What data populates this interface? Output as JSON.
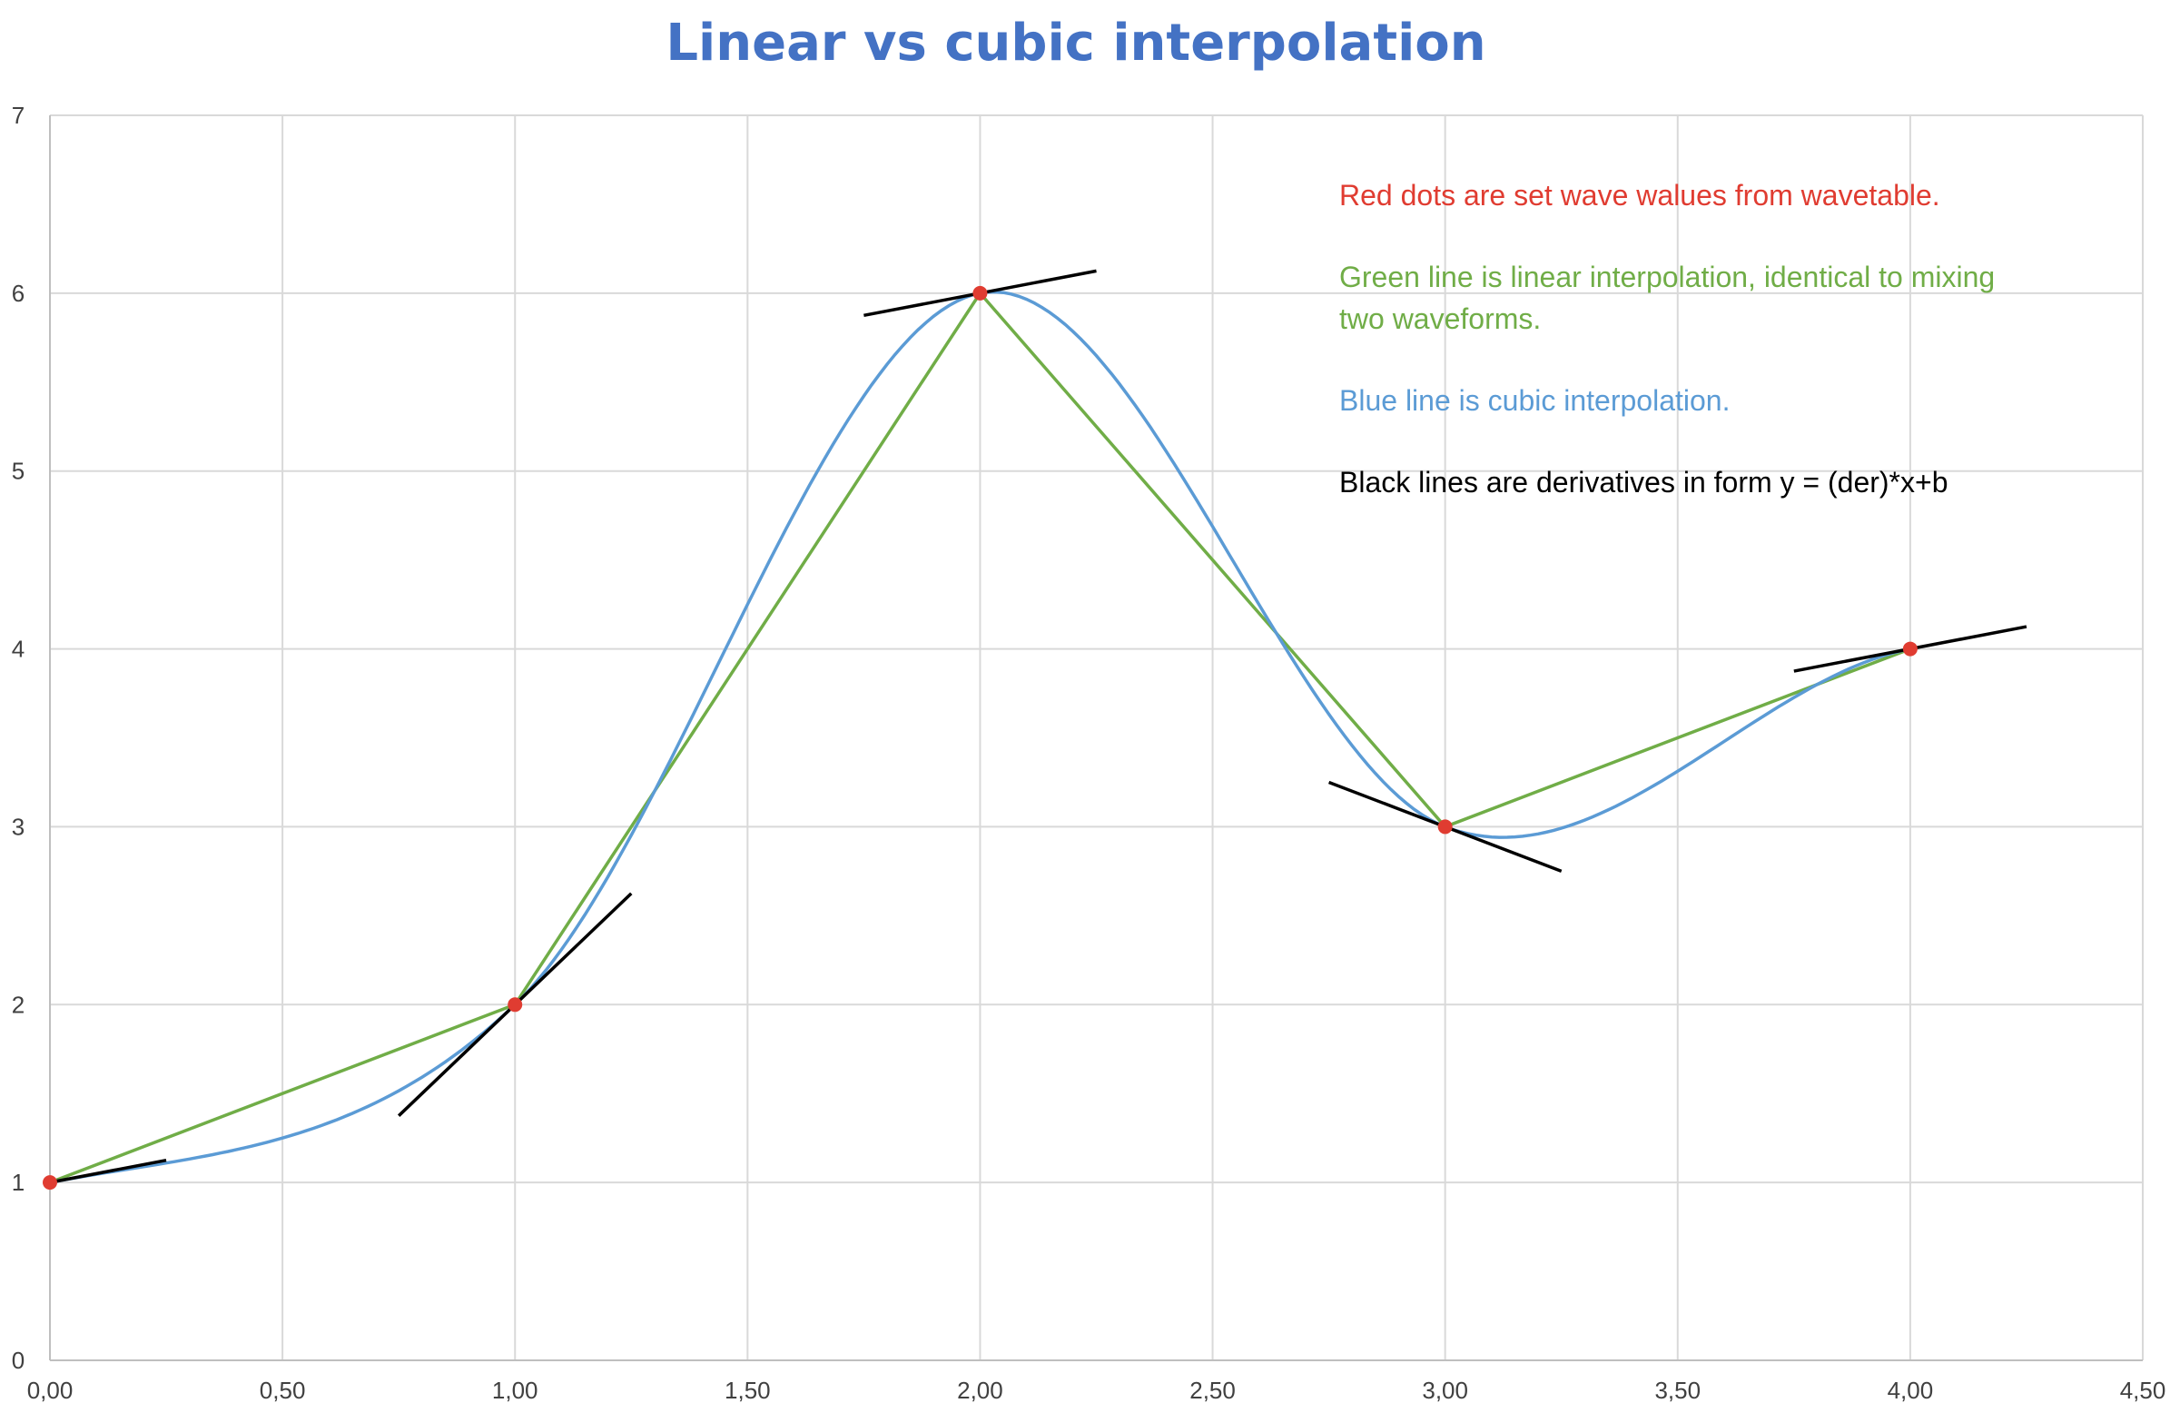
{
  "chart_data": {
    "type": "line",
    "title": "Linear vs cubic interpolation",
    "xlabel": "",
    "ylabel": "",
    "xlim": [
      0,
      4.5
    ],
    "ylim": [
      0,
      7
    ],
    "grid": true,
    "legend": "none",
    "x_ticks": [
      "0,00",
      "0,50",
      "1,00",
      "1,50",
      "2,00",
      "2,50",
      "3,00",
      "3,50",
      "4,00",
      "4,50"
    ],
    "y_ticks": [
      "0",
      "1",
      "2",
      "3",
      "4",
      "5",
      "6",
      "7"
    ],
    "points": {
      "color": "#e03c31",
      "x": [
        0,
        1,
        2,
        3,
        4
      ],
      "y": [
        1,
        2,
        6,
        3,
        4
      ]
    },
    "series": [
      {
        "color": "#70ad47",
        "kind": "linear",
        "x": [
          0,
          1,
          2,
          3,
          4
        ],
        "y": [
          1,
          2,
          6,
          3,
          4
        ]
      },
      {
        "color": "#5b9bd5",
        "kind": "cubic",
        "x": [
          0,
          1,
          2,
          3,
          4
        ],
        "y": [
          1,
          2,
          6,
          3,
          4
        ]
      }
    ],
    "derivatives": {
      "color": "#000000",
      "x": [
        0,
        1,
        2,
        3,
        4
      ],
      "y": [
        1,
        2,
        6,
        3,
        4
      ],
      "slope": [
        0.5,
        2.5,
        0.5,
        -1.0,
        0.5
      ]
    },
    "annotations": [
      {
        "text": "Red dots are set wave walues from wavetable.",
        "color": "#e03c31"
      },
      {
        "text": "Green line is linear interpolation, identical to mixing",
        "color": "#70ad47"
      },
      {
        "text": "two waveforms.",
        "color": "#70ad47"
      },
      {
        "text": "Blue line is cubic interpolation.",
        "color": "#5b9bd5"
      },
      {
        "text": "Black lines are derivatives in form y = (der)*x+b",
        "color": "#000000"
      }
    ],
    "title_color": "#4472c4"
  }
}
